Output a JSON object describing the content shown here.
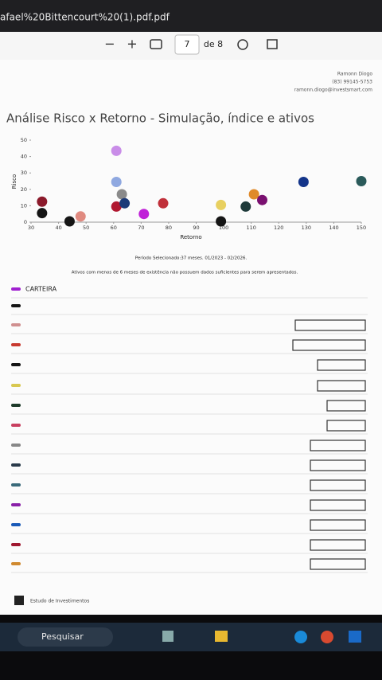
{
  "window": {
    "tab_title": "afael%20Bittencourt%20(1).pdf.pdf"
  },
  "toolbar": {
    "zoom_out": "−",
    "zoom_in": "+",
    "page": "7",
    "page_total": "de 8"
  },
  "header": {
    "name": "Ramonn Diogo",
    "phone": "(83) 99145-5753",
    "email": "ramonn.diogo@investsmart.com"
  },
  "chart_data": {
    "type": "scatter",
    "title": "Análise Risco x Retorno - Simulação, índice e ativos",
    "x_label": "Retorno",
    "y_label": "Risco",
    "xlim": [
      30,
      150
    ],
    "xticks": [
      30,
      40,
      50,
      60,
      70,
      80,
      90,
      100,
      110,
      120,
      130,
      140,
      150
    ],
    "ylim": [
      0,
      50
    ],
    "yticks": [
      0,
      10,
      20,
      30,
      40,
      50
    ],
    "x": [
      34,
      34,
      44,
      48,
      61,
      61,
      63,
      61,
      64,
      71,
      78,
      99,
      99,
      108,
      111,
      114,
      129,
      150
    ],
    "values": [
      12.5,
      5.5,
      0.5,
      3.5,
      43.5,
      24.5,
      17,
      9.5,
      11.5,
      5,
      11.5,
      10.5,
      0.5,
      9.5,
      17,
      13.5,
      24.5,
      25
    ],
    "colors": [
      "#8b1a2b",
      "#151515",
      "#151515",
      "#e08a80",
      "#c98de8",
      "#8fa8e0",
      "#8a8a8a",
      "#b01830",
      "#1c3a78",
      "#c020d8",
      "#c0303a",
      "#e8d060",
      "#151515",
      "#1e3a3a",
      "#e08a2a",
      "#7a1070",
      "#14358a",
      "#2a5a5a"
    ]
  },
  "period": "Período Selecionado:37 meses. 01/2023 - 02/2026.",
  "note": "Ativos com menos de 6 meses de existência não possuem dados suficientes para serem apresentados.",
  "legend": {
    "portfolio": "CARTEIRA"
  },
  "footer": "Estudo de Investimentos",
  "taskbar": {
    "search": "Pesquisar"
  }
}
